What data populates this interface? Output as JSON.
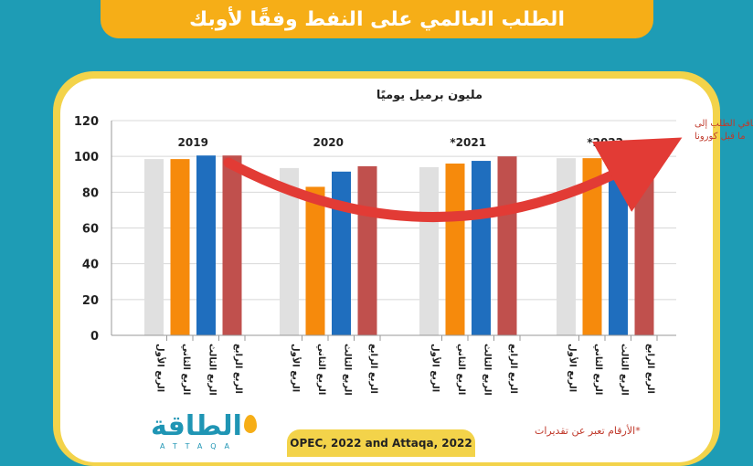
{
  "header": {
    "title": "الطلب العالمي على النفط وفقًا لأوبك"
  },
  "chart_data": {
    "type": "bar",
    "title": "مليون برميل يوميًا",
    "ylim": [
      0,
      120
    ],
    "yticks": [
      0,
      20,
      40,
      60,
      80,
      100,
      120
    ],
    "groups": [
      "2019",
      "2020",
      "*2021",
      "*2022"
    ],
    "categories": [
      "الربع الأول",
      "الربع الثاني",
      "الربع الثالث",
      "الربع الرابع"
    ],
    "series": [
      {
        "name": "2019",
        "values": [
          98.5,
          98.5,
          100.5,
          100.5
        ]
      },
      {
        "name": "2020",
        "values": [
          93.5,
          83,
          91.5,
          94.5
        ]
      },
      {
        "name": "*2021",
        "values": [
          94,
          96,
          97.5,
          100
        ]
      },
      {
        "name": "*2022",
        "values": [
          99,
          99,
          101,
          102
        ]
      }
    ],
    "colors": [
      "#e0e0e0",
      "#f68a0c",
      "#1f6ebe",
      "#c0504d"
    ],
    "annotation": "تعافي الطلب إلى ما قبل كورونا",
    "grid": true
  },
  "footer": {
    "source": "OPEC, 2022 and Attaqa, 2022",
    "note": "*الأرقام تعبر عن تقديرات",
    "logo_text": "الطاقة",
    "logo_sub": "ATTAQA"
  }
}
